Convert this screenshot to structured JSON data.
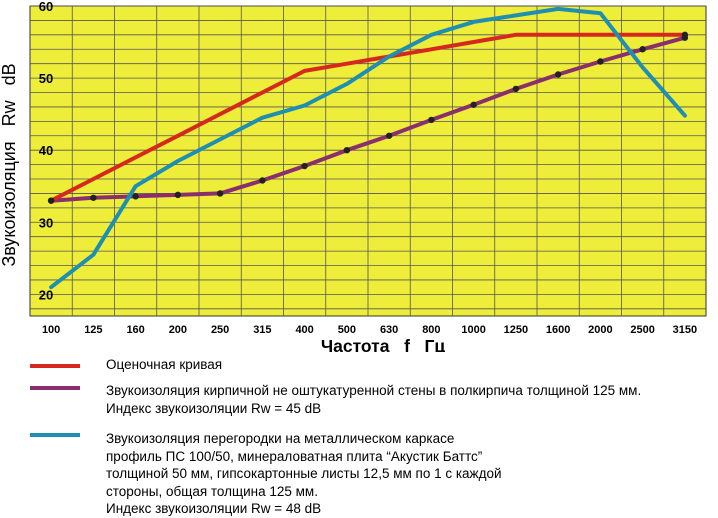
{
  "chart_data": {
    "type": "line",
    "xlabel": "Частота   f   Гц",
    "ylabel": "Звукоизоляция   Rw   dB",
    "ylim": [
      17,
      60
    ],
    "yticks": [
      20,
      30,
      40,
      50,
      60
    ],
    "categories": [
      "100",
      "125",
      "160",
      "200",
      "250",
      "315",
      "400",
      "500",
      "630",
      "800",
      "1000",
      "1250",
      "1600",
      "2000",
      "2500",
      "3150"
    ],
    "grid": true,
    "background": "#eded3a",
    "series": [
      {
        "name": "Оценочная  кривая",
        "color": "#d6281e",
        "values": [
          33,
          36,
          39,
          42,
          45,
          48,
          51,
          52,
          53,
          54,
          55,
          56,
          56,
          56,
          56,
          56
        ],
        "markers": [
          true,
          false,
          false,
          false,
          false,
          false,
          false,
          false,
          false,
          false,
          false,
          false,
          false,
          false,
          false,
          true
        ]
      },
      {
        "name": "Звукоизоляция кирпичной не оштукатуренной стены в полкирпича  толщиной 125 мм.",
        "color": "#8b2e6e",
        "values": [
          33,
          33.4,
          33.6,
          33.8,
          34,
          35.8,
          37.8,
          40,
          42,
          44.2,
          46.3,
          48.5,
          50.5,
          52.3,
          54,
          55.6
        ],
        "markers": [
          true,
          true,
          true,
          true,
          true,
          true,
          true,
          true,
          true,
          true,
          true,
          true,
          true,
          true,
          true,
          true
        ]
      },
      {
        "name": "Звукоизоляция перегородки на металлическом каркасе",
        "color": "#1e8fb2",
        "values": [
          21,
          25.5,
          35,
          38.5,
          41.5,
          44.5,
          46.2,
          49.2,
          53,
          56,
          57.8,
          58.7,
          59.6,
          59,
          51.5,
          44.8
        ],
        "markers": [
          false,
          false,
          false,
          false,
          false,
          false,
          false,
          false,
          false,
          false,
          false,
          false,
          false,
          false,
          false,
          false
        ]
      }
    ]
  },
  "legend": {
    "red": {
      "text": "Оценочная  кривая",
      "color": "#d6281e"
    },
    "purple": {
      "text": "Звукоизоляция кирпичной не оштукатуренной стены в полкирпича  толщиной 125 мм.\nИндекс  звукоизоляции   Rw = 45 dB",
      "color": "#8b2e6e"
    },
    "blue": {
      "text": "Звукоизоляция перегородки на металлическом каркасе\nпрофиль ПС 100/50, минераловатная плита “Акустик Баттс”\nтолщиной 50 мм, гипсокартонные листы 12,5 мм по 1 с каждой\nстороны, общая  толщина 125 мм.\nИндекс звукоизоляции    Rw = 48 dB",
      "color": "#1e8fb2"
    }
  }
}
